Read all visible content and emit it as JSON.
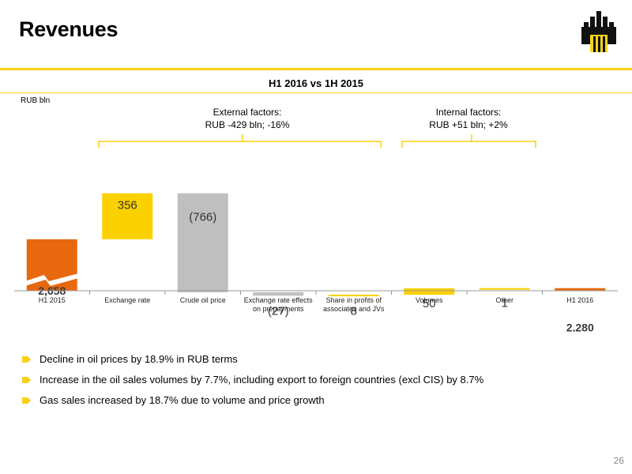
{
  "header": {
    "title": "Revenues",
    "logo_name": "rosneft-logo"
  },
  "subtitle": "H1 2016 vs 1H 2015",
  "unit_label": "RUB bln",
  "factors": {
    "external": {
      "line1": "External factors:",
      "line2": "RUB -429 bln; -16%"
    },
    "internal": {
      "line1": "Internal factors:",
      "line2": "RUB +51 bln; +2%"
    }
  },
  "colors": {
    "accent_yellow": "#f7d117",
    "total_orange": "#e8680f",
    "negative_gray": "#bfbfbf",
    "positive_yellow": "#fbd100"
  },
  "chart_data": {
    "type": "bar",
    "subtype": "waterfall",
    "categories": [
      "H1 2015",
      "Exchange rate",
      "Crude oil price",
      "Exchange rate effects on prepayments",
      "Share in profits of associates and JVs",
      "Volumes",
      "Other",
      "H1 2016"
    ],
    "category_lines": [
      [
        "H1 2015"
      ],
      [
        "Exchange rate"
      ],
      [
        "Crude oil price"
      ],
      [
        "Exchange rate effects",
        "on prepayments"
      ],
      [
        "Share in profits of",
        "associates and JVs"
      ],
      [
        "Volumes"
      ],
      [
        "Other"
      ],
      [
        "H1 2016"
      ]
    ],
    "values": [
      2658,
      356,
      -766,
      -27,
      8,
      50,
      1,
      2280
    ],
    "labels": [
      "2,658",
      "356",
      "(766)",
      "(27)",
      "8",
      "50",
      "1",
      "2,280"
    ],
    "kinds": [
      "total",
      "positive",
      "negative",
      "negative",
      "positive",
      "positive",
      "positive",
      "total"
    ],
    "axis_break": true
  },
  "bullets": [
    "Decline in oil prices by 18.9% in RUB terms",
    "Increase in the oil sales volumes by 7.7%, including export to foreign countries (excl CIS) by 8.7%",
    "Gas sales increased by 18.7% due to volume and price growth"
  ],
  "page_number": "26"
}
